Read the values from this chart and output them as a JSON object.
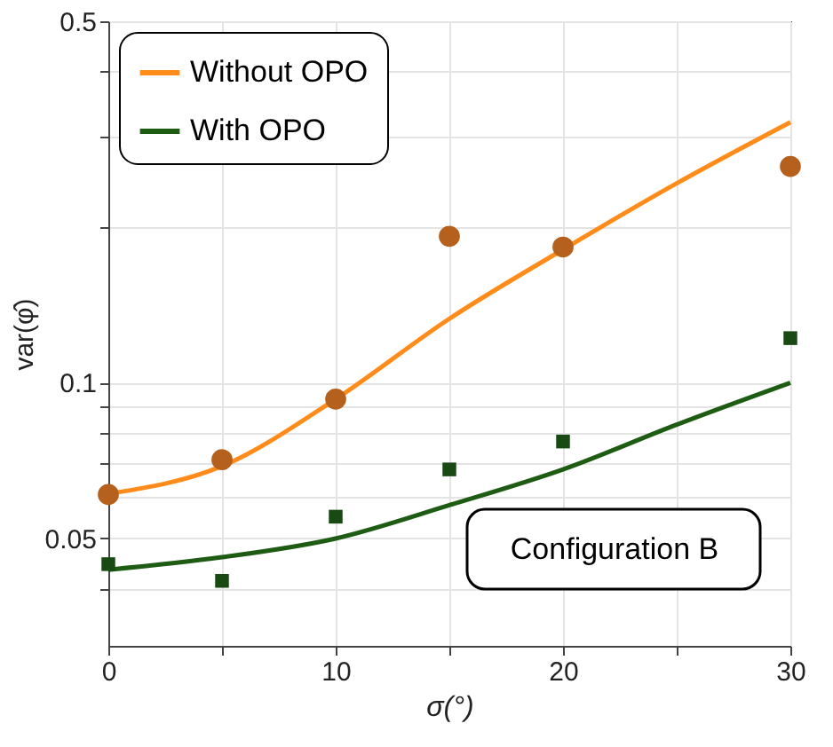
{
  "chart_data": {
    "type": "scatter",
    "xlabel": "σ(°)",
    "ylabel": "var(φ̂)",
    "log": "y",
    "grid": true,
    "legend": "top left",
    "xlim": [
      0,
      30
    ],
    "xticks": [
      0,
      {
        "value": 5,
        "label": null
      },
      10,
      {
        "value": 15,
        "label": null
      },
      20,
      {
        "value": 25,
        "label": null
      },
      30
    ],
    "ylim": [
      0.031,
      0.5
    ],
    "yticks": [
      {
        "value": 0.04,
        "label": null
      },
      0.05,
      {
        "value": 0.06,
        "label": null
      },
      {
        "value": 0.07,
        "label": null
      },
      {
        "value": 0.08,
        "label": null
      },
      {
        "value": 0.09,
        "label": null
      },
      0.1,
      {
        "value": 0.2,
        "label": null
      },
      {
        "value": 0.3,
        "label": null
      },
      {
        "value": 0.4,
        "label": null
      },
      0.5
    ],
    "annotations": [
      "Configuration B"
    ],
    "series": [
      {
        "name": "Without OPO",
        "type": "line",
        "color": "#ff8c1a",
        "x": [
          0,
          5,
          10,
          15,
          20,
          25,
          30
        ],
        "values": [
          0.061,
          0.069,
          0.093,
          0.133,
          0.181,
          0.243,
          0.319
        ]
      },
      {
        "name": "With OPO",
        "type": "line",
        "color": "#1e5c14",
        "x": [
          0,
          5,
          10,
          15,
          20,
          25,
          30
        ],
        "values": [
          0.0435,
          0.046,
          0.05,
          0.058,
          0.068,
          0.083,
          0.1
        ]
      },
      {
        "marker": "circle",
        "color": "#b5601c",
        "x": [
          0,
          5,
          10,
          15,
          20,
          30
        ],
        "values": [
          0.0608,
          0.071,
          0.093,
          0.192,
          0.183,
          0.262
        ]
      },
      {
        "marker": "square",
        "color": "#1a4a14",
        "x": [
          0,
          5,
          10,
          15,
          20,
          30
        ],
        "values": [
          0.0446,
          0.0414,
          0.0551,
          0.068,
          0.077,
          0.122
        ]
      }
    ]
  }
}
